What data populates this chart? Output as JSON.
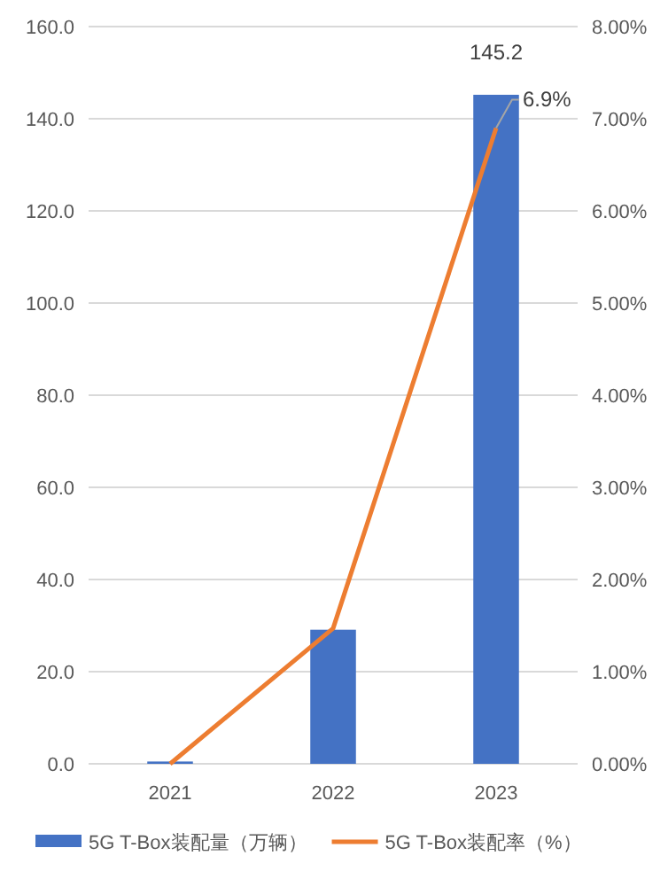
{
  "chart_data": {
    "type": "bar",
    "categories": [
      "2021",
      "2022",
      "2023"
    ],
    "series": [
      {
        "name": "5G T-Box装配量（万辆）",
        "color": "#4472c4",
        "values": [
          0.5,
          29.1,
          145.2
        ],
        "value_labels": [
          null,
          null,
          "145.2"
        ]
      },
      {
        "name": "5G T-Box装配率（%）",
        "type": "line",
        "axis": "y2",
        "color": "#ed7d31",
        "values": [
          0,
          1.47,
          6.9
        ],
        "value_labels": [
          null,
          null,
          "6.9%"
        ]
      }
    ],
    "ylim": [
      0,
      160
    ],
    "yticks": [
      {
        "value": 0,
        "label": "0.0"
      },
      {
        "value": 20,
        "label": "20.0"
      },
      {
        "value": 40,
        "label": "40.0"
      },
      {
        "value": 60,
        "label": "60.0"
      },
      {
        "value": 80,
        "label": "80.0"
      },
      {
        "value": 100,
        "label": "100.0"
      },
      {
        "value": 120,
        "label": "120.0"
      },
      {
        "value": 140,
        "label": "140.0"
      },
      {
        "value": 160,
        "label": "160.0"
      }
    ],
    "y2lim": [
      0,
      8
    ],
    "y2ticks": [
      {
        "value": 0,
        "label": "0.00%"
      },
      {
        "value": 1,
        "label": "1.00%"
      },
      {
        "value": 2,
        "label": "2.00%"
      },
      {
        "value": 3,
        "label": "3.00%"
      },
      {
        "value": 4,
        "label": "4.00%"
      },
      {
        "value": 5,
        "label": "5.00%"
      },
      {
        "value": 6,
        "label": "6.00%"
      },
      {
        "value": 7,
        "label": "7.00%"
      },
      {
        "value": 8,
        "label": "8.00%"
      }
    ],
    "grid": "y",
    "legend": "bottom",
    "marker": "none"
  }
}
